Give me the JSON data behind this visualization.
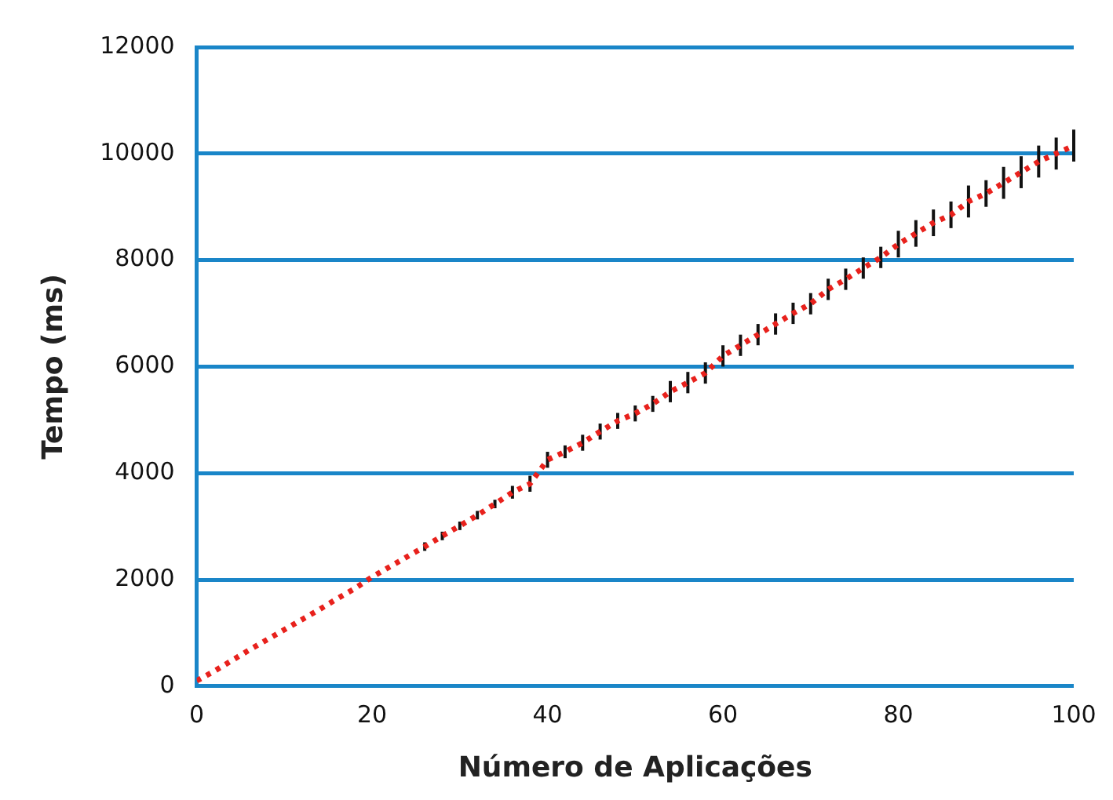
{
  "chart_data": {
    "type": "line",
    "xlabel": "Número de Aplicações",
    "ylabel": "Tempo (ms)",
    "x": [
      0,
      2,
      4,
      6,
      8,
      10,
      12,
      14,
      16,
      18,
      20,
      22,
      24,
      26,
      28,
      30,
      32,
      34,
      36,
      38,
      40,
      42,
      44,
      46,
      48,
      50,
      52,
      54,
      56,
      58,
      60,
      62,
      64,
      66,
      68,
      70,
      72,
      74,
      76,
      78,
      80,
      82,
      84,
      86,
      88,
      90,
      92,
      94,
      96,
      98,
      100
    ],
    "series": [
      {
        "color": "#e8211c",
        "values": [
          100,
          280,
          480,
          680,
          870,
          1060,
          1250,
          1440,
          1640,
          1830,
          2050,
          2240,
          2430,
          2620,
          2820,
          3010,
          3210,
          3420,
          3640,
          3800,
          4250,
          4400,
          4570,
          4780,
          4980,
          5120,
          5300,
          5530,
          5700,
          5880,
          6200,
          6400,
          6600,
          6800,
          7000,
          7180,
          7450,
          7640,
          7850,
          8050,
          8300,
          8500,
          8700,
          8850,
          9100,
          9250,
          9450,
          9650,
          9850,
          10000,
          10150
        ],
        "errors": [
          null,
          null,
          null,
          null,
          null,
          null,
          null,
          null,
          null,
          null,
          null,
          null,
          null,
          80,
          80,
          80,
          80,
          80,
          120,
          150,
          150,
          120,
          150,
          150,
          150,
          150,
          150,
          200,
          200,
          200,
          200,
          200,
          200,
          200,
          200,
          200,
          200,
          200,
          200,
          200,
          250,
          250,
          250,
          250,
          300,
          250,
          300,
          300,
          300,
          300,
          300
        ]
      }
    ],
    "xlim": [
      0,
      100
    ],
    "xticks": [
      0,
      20,
      40,
      60,
      80,
      100
    ],
    "ylim": [
      0,
      12000
    ],
    "yticks": [
      0,
      2000,
      4000,
      6000,
      8000,
      10000,
      12000
    ],
    "grid": "y",
    "marker": "none",
    "line_style": "dotted"
  }
}
